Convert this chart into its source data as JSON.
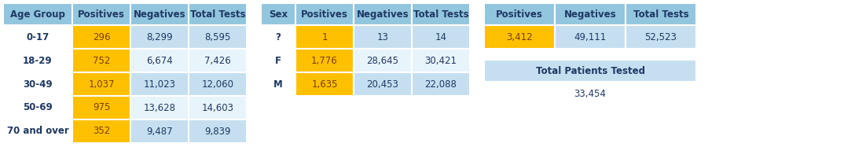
{
  "header_bg": "#92C5DE",
  "orange_bg": "#FFC000",
  "white_bg": "#FFFFFF",
  "light_blue_bg": "#C5DFF0",
  "row_alt_bg": "#E8F4FB",
  "bg_color": "#FFFFFF",
  "table1_headers": [
    "Age Group",
    "Positives",
    "Negatives",
    "Total Tests"
  ],
  "table1_rows": [
    [
      "0-17",
      "296",
      "8,299",
      "8,595"
    ],
    [
      "18-29",
      "752",
      "6,674",
      "7,426"
    ],
    [
      "30-49",
      "1,037",
      "11,023",
      "12,060"
    ],
    [
      "50-69",
      "975",
      "13,628",
      "14,603"
    ],
    [
      "70 and over",
      "352",
      "9,487",
      "9,839"
    ]
  ],
  "table2_headers": [
    "Sex",
    "Positives",
    "Negatives",
    "Total Tests"
  ],
  "table2_rows": [
    [
      "?",
      "1",
      "13",
      "14"
    ],
    [
      "F",
      "1,776",
      "28,645",
      "30,421"
    ],
    [
      "M",
      "1,635",
      "20,453",
      "22,088"
    ]
  ],
  "table3_headers": [
    "Positives",
    "Negatives",
    "Total Tests"
  ],
  "table3_row": [
    "3,412",
    "49,111",
    "52,523"
  ],
  "total_label": "Total Patients Tested",
  "total_value": "33,454",
  "header_text_color": "#1F3864",
  "body_text_color": "#1F3864",
  "orange_text_color": "#7F4000",
  "font_size": 8.5,
  "bold_col0": true
}
